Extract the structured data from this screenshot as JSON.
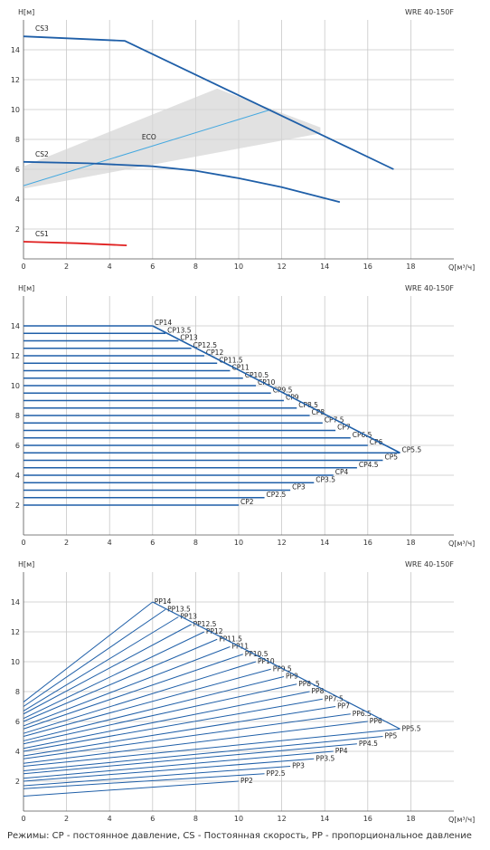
{
  "footer": "Режимы: CP - постоянное давление, CS - Постоянная скорость, PP - пропорциональное давление",
  "chart_data": [
    {
      "type": "line",
      "title": "WRE 40-150F",
      "ylabel": "H[м]",
      "xlabel": "Q[м³/ч]",
      "xlim": [
        0,
        20
      ],
      "ylim": [
        0,
        16
      ],
      "xticks": [
        0,
        2,
        4,
        6,
        8,
        10,
        12,
        14,
        16,
        18
      ],
      "yticks": [
        2,
        4,
        6,
        8,
        10,
        12,
        14
      ],
      "grid": true,
      "eco": {
        "label": "ECO",
        "line": [
          [
            0,
            4.9
          ],
          [
            11.5,
            10.0
          ]
        ],
        "band_upper": [
          [
            0,
            6.2
          ],
          [
            9.0,
            11.4
          ],
          [
            13.8,
            8.8
          ]
        ],
        "band_lower": [
          [
            0,
            4.7
          ],
          [
            13.8,
            8.4
          ]
        ],
        "color": "#44a8e0"
      },
      "series": [
        {
          "name": "CS3",
          "color": "#1f5fa8",
          "points": [
            [
              0,
              14.9
            ],
            [
              4.7,
              14.6
            ],
            [
              17.2,
              6.0
            ]
          ]
        },
        {
          "name": "CS2",
          "color": "#1f5fa8",
          "points": [
            [
              0,
              6.5
            ],
            [
              3,
              6.4
            ],
            [
              6,
              6.2
            ],
            [
              8,
              5.9
            ],
            [
              10,
              5.4
            ],
            [
              12,
              4.8
            ],
            [
              14.7,
              3.8
            ]
          ]
        },
        {
          "name": "CS1",
          "color": "#e02020",
          "points": [
            [
              0,
              1.15
            ],
            [
              2.5,
              1.05
            ],
            [
              4.8,
              0.9
            ]
          ]
        }
      ]
    },
    {
      "type": "line",
      "title": "WRE 40-150F",
      "ylabel": "H[м]",
      "xlabel": "Q[м³/ч]",
      "xlim": [
        0,
        20
      ],
      "ylim": [
        0,
        16
      ],
      "xticks": [
        0,
        2,
        4,
        6,
        8,
        10,
        12,
        14,
        16,
        18
      ],
      "yticks": [
        2,
        4,
        6,
        8,
        10,
        12,
        14
      ],
      "grid": true,
      "series": [
        {
          "name": "CP14",
          "h": 14,
          "q_end": 6.0
        },
        {
          "name": "CP13.5",
          "h": 13.5,
          "q_end": 6.6
        },
        {
          "name": "CP13",
          "h": 13,
          "q_end": 7.2
        },
        {
          "name": "CP12.5",
          "h": 12.5,
          "q_end": 7.8
        },
        {
          "name": "CP12",
          "h": 12,
          "q_end": 8.4
        },
        {
          "name": "CP11.5",
          "h": 11.5,
          "q_end": 9.0
        },
        {
          "name": "CP11",
          "h": 11,
          "q_end": 9.6
        },
        {
          "name": "CP10.5",
          "h": 10.5,
          "q_end": 10.2
        },
        {
          "name": "CP10",
          "h": 10,
          "q_end": 10.8
        },
        {
          "name": "CP9.5",
          "h": 9.5,
          "q_end": 11.5
        },
        {
          "name": "CP9",
          "h": 9,
          "q_end": 12.1
        },
        {
          "name": "CP8.5",
          "h": 8.5,
          "q_end": 12.7
        },
        {
          "name": "CP8",
          "h": 8,
          "q_end": 13.3
        },
        {
          "name": "CP7.5",
          "h": 7.5,
          "q_end": 13.9
        },
        {
          "name": "CP7",
          "h": 7,
          "q_end": 14.5
        },
        {
          "name": "CP6.5",
          "h": 6.5,
          "q_end": 15.2
        },
        {
          "name": "CP6",
          "h": 6,
          "q_end": 16.0
        },
        {
          "name": "CP5.5",
          "h": 5.5,
          "q_end": 17.5
        },
        {
          "name": "CP5",
          "h": 5,
          "q_end": 16.7
        },
        {
          "name": "CP4.5",
          "h": 4.5,
          "q_end": 15.5
        },
        {
          "name": "CP4",
          "h": 4,
          "q_end": 14.4
        },
        {
          "name": "CP3.5",
          "h": 3.5,
          "q_end": 13.5
        },
        {
          "name": "CP3",
          "h": 3,
          "q_end": 12.4
        },
        {
          "name": "CP2.5",
          "h": 2.5,
          "q_end": 11.2
        },
        {
          "name": "CP2",
          "h": 2,
          "q_end": 10.0
        }
      ]
    },
    {
      "type": "line",
      "title": "WRE 40-150F",
      "ylabel": "H[м]",
      "xlabel": "Q[м³/ч]",
      "xlim": [
        0,
        20
      ],
      "ylim": [
        0,
        16
      ],
      "xticks": [
        0,
        2,
        4,
        6,
        8,
        10,
        12,
        14,
        16,
        18
      ],
      "yticks": [
        2,
        4,
        6,
        8,
        10,
        12,
        14
      ],
      "grid": true,
      "series": [
        {
          "name": "PP14",
          "h0": 7.3,
          "q_end": 6.0,
          "h_end": 14.0
        },
        {
          "name": "PP13.5",
          "h0": 7.0,
          "q_end": 6.6,
          "h_end": 13.5
        },
        {
          "name": "PP13",
          "h0": 6.7,
          "q_end": 7.2,
          "h_end": 13.0
        },
        {
          "name": "PP12.5",
          "h0": 6.5,
          "q_end": 7.8,
          "h_end": 12.5
        },
        {
          "name": "PP12",
          "h0": 6.2,
          "q_end": 8.4,
          "h_end": 12.0
        },
        {
          "name": "PP11.5",
          "h0": 6.0,
          "q_end": 9.0,
          "h_end": 11.5
        },
        {
          "name": "PP11",
          "h0": 5.7,
          "q_end": 9.6,
          "h_end": 11.0
        },
        {
          "name": "PP10.5",
          "h0": 5.5,
          "q_end": 10.2,
          "h_end": 10.5
        },
        {
          "name": "PP10",
          "h0": 5.2,
          "q_end": 10.8,
          "h_end": 10.0
        },
        {
          "name": "PP9.5",
          "h0": 5.0,
          "q_end": 11.5,
          "h_end": 9.5
        },
        {
          "name": "PP9",
          "h0": 4.7,
          "q_end": 12.1,
          "h_end": 9.0
        },
        {
          "name": "PP8 .5",
          "h0": 4.5,
          "q_end": 12.7,
          "h_end": 8.5
        },
        {
          "name": "PP8",
          "h0": 4.2,
          "q_end": 13.3,
          "h_end": 8.0
        },
        {
          "name": "PP7.5",
          "h0": 4.0,
          "q_end": 13.9,
          "h_end": 7.5
        },
        {
          "name": "PP7",
          "h0": 3.7,
          "q_end": 14.5,
          "h_end": 7.0
        },
        {
          "name": "PP6.5",
          "h0": 3.5,
          "q_end": 15.2,
          "h_end": 6.5
        },
        {
          "name": "PP6",
          "h0": 3.2,
          "q_end": 16.0,
          "h_end": 6.0
        },
        {
          "name": "PP5.5",
          "h0": 3.0,
          "q_end": 17.5,
          "h_end": 5.5
        },
        {
          "name": "PP5",
          "h0": 2.7,
          "q_end": 16.7,
          "h_end": 5.0
        },
        {
          "name": "PP4.5",
          "h0": 2.5,
          "q_end": 15.5,
          "h_end": 4.5
        },
        {
          "name": "PP4",
          "h0": 2.2,
          "q_end": 14.4,
          "h_end": 4.0
        },
        {
          "name": "PP3.5",
          "h0": 2.0,
          "q_end": 13.5,
          "h_end": 3.5
        },
        {
          "name": "PP3",
          "h0": 1.7,
          "q_end": 12.4,
          "h_end": 3.0
        },
        {
          "name": "PP2.5",
          "h0": 1.5,
          "q_end": 11.2,
          "h_end": 2.5
        },
        {
          "name": "PP2",
          "h0": 1.0,
          "q_end": 10.0,
          "h_end": 2.0
        }
      ]
    }
  ]
}
